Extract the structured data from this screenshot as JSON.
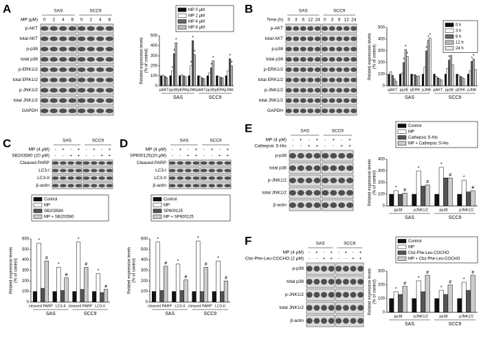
{
  "panels": [
    {
      "letter": "A",
      "cell_lines": [
        "SAS",
        "SCC9"
      ],
      "conditions": [
        {
          "label": "MP (μM)",
          "values": [
            "0",
            "2",
            "4",
            "8",
            "0",
            "2",
            "4",
            "8"
          ]
        }
      ],
      "rows": [
        "p-AKT",
        "total AKT",
        "p-p38",
        "total p38",
        "p-ERK1/2",
        "total ERK1/2",
        "p-JNK1/2",
        "total JNK1/2",
        "GAPDH"
      ]
    },
    {
      "letter": "B",
      "cell_lines": [
        "SAS",
        "SCC9"
      ],
      "conditions": [
        {
          "label": "Time (h)",
          "values": [
            "0",
            "3",
            "6",
            "12",
            "24",
            "0",
            "3",
            "6",
            "12",
            "24"
          ]
        }
      ],
      "rows": [
        "p-AKT",
        "total AKT",
        "p-p38",
        "total p38",
        "p-ERK1/2",
        "total ERK1/2",
        "p-JNK1/2",
        "total JNK1/2",
        "GAPDH"
      ]
    },
    {
      "letter": "C",
      "cell_lines": [
        "SAS",
        "SCC9"
      ],
      "conditions": [
        {
          "label": "MP (4 μM)",
          "values": [
            "-",
            "+",
            "-",
            "+",
            "-",
            "+",
            "-",
            "+"
          ]
        },
        {
          "label": "SB203580 (20 μM)",
          "values": [
            "-",
            "-",
            "+",
            "+",
            "-",
            "-",
            "+",
            "+"
          ]
        }
      ],
      "rows": [
        "Cleaved PARP",
        "LC3-I",
        "LC3-II",
        "β-actin"
      ]
    },
    {
      "letter": "D",
      "cell_lines": [
        "SAS",
        "SCC9"
      ],
      "conditions": [
        {
          "label": "MP (4 μM)",
          "values": [
            "-",
            "+",
            "-",
            "+",
            "-",
            "+",
            "-",
            "+"
          ]
        },
        {
          "label": "SP600125(20 μM)",
          "values": [
            "-",
            "-",
            "+",
            "+",
            "-",
            "-",
            "+",
            "+"
          ]
        }
      ],
      "rows": [
        "Cleaved PARP",
        "LC3-I",
        "LC3-II",
        "β-actin"
      ]
    },
    {
      "letter": "E",
      "cell_lines": [
        "SAS",
        "SCC9"
      ],
      "conditions": [
        {
          "label": "MP (4 μM)",
          "values": [
            "-",
            "+",
            "-",
            "+",
            "-",
            "+",
            "-",
            "+"
          ]
        },
        {
          "label": "Cathepsic S-His",
          "values": [
            "-",
            "-",
            "+",
            "+",
            "-",
            "-",
            "+",
            "+"
          ]
        }
      ],
      "rows": [
        "p-p38",
        "total p38",
        "p-JNK1/2",
        "total JNK1/2",
        "β-actin"
      ]
    },
    {
      "letter": "F",
      "cell_lines": [
        "SAS",
        "SCC9"
      ],
      "conditions": [
        {
          "label": "MP (4 μM)",
          "values": [
            "-",
            "+",
            "-",
            "+",
            "-",
            "+",
            "-",
            "+"
          ]
        },
        {
          "label": "Cbz-Phe-Leu-COCHO (2 μM)",
          "values": [
            "-",
            "-",
            "+",
            "+",
            "-",
            "-",
            "+",
            "+"
          ]
        }
      ],
      "rows": [
        "p-p38",
        "total p38",
        "p-JNK1/2",
        "total JNK1/2",
        "β-actin"
      ]
    }
  ],
  "chart_data": [
    {
      "type": "bar",
      "y_label": [
        "Related expression levels",
        "(% of control)"
      ],
      "categories": [
        "pAKT",
        "pp38",
        "pERK",
        "pJNK",
        "pAKT",
        "pp38",
        "pERK",
        "pJNK"
      ],
      "groups": [
        "SAS",
        "SCC9"
      ],
      "ylim": [
        0,
        500
      ],
      "yticks": [
        0,
        100,
        200,
        300,
        400,
        500
      ],
      "series": [
        {
          "name": "MP 0 μM",
          "color": "#111111",
          "values": [
            100,
            100,
            100,
            100,
            100,
            100,
            100,
            100
          ]
        },
        {
          "name": "MP 2 μM",
          "color": "#ffffff",
          "values": [
            105,
            150,
            110,
            200,
            90,
            130,
            90,
            150
          ],
          "significance": [
            null,
            "*",
            null,
            "*",
            null,
            null,
            null,
            null
          ]
        },
        {
          "name": "MP 4 μM",
          "color": "#666666",
          "values": [
            95,
            320,
            100,
            450,
            80,
            180,
            85,
            270
          ],
          "significance": [
            null,
            "*",
            null,
            "*",
            null,
            "*",
            null,
            "*"
          ]
        },
        {
          "name": "MP 8 μM",
          "color": "#bbbbbb",
          "values": [
            80,
            430,
            90,
            310,
            70,
            250,
            80,
            200
          ],
          "significance": [
            null,
            "*",
            null,
            "*",
            null,
            "*",
            null,
            "*"
          ]
        }
      ]
    },
    {
      "type": "bar",
      "y_label": [
        "Related expression levels",
        "(% of control)"
      ],
      "categories": [
        "pAKT",
        "pp38",
        "pERK",
        "pJNK",
        "pAKT",
        "pp38",
        "pERK",
        "pJNK"
      ],
      "groups": [
        "SAS",
        "SCC9"
      ],
      "ylim": [
        0,
        500
      ],
      "yticks": [
        0,
        100,
        200,
        300,
        400,
        500
      ],
      "series": [
        {
          "name": "0 h",
          "color": "#111111",
          "values": [
            100,
            100,
            100,
            100,
            100,
            100,
            100,
            100
          ]
        },
        {
          "name": "3 h",
          "color": "#ffffff",
          "values": [
            120,
            110,
            90,
            160,
            80,
            150,
            90,
            130
          ]
        },
        {
          "name": "6 h",
          "color": "#666666",
          "values": [
            90,
            200,
            95,
            300,
            70,
            220,
            80,
            210
          ],
          "significance": [
            null,
            "*",
            null,
            "*",
            null,
            "*",
            null,
            "*"
          ]
        },
        {
          "name": "12 h",
          "color": "#bbbbbb",
          "values": [
            60,
            310,
            80,
            390,
            60,
            260,
            70,
            230
          ],
          "significance": [
            null,
            "*",
            null,
            "*",
            null,
            "*",
            null,
            "*"
          ]
        },
        {
          "name": "24 h",
          "color": "#e6e6e6",
          "values": [
            40,
            250,
            85,
            410,
            50,
            180,
            60,
            140
          ],
          "significance": [
            null,
            "*",
            null,
            "*",
            null,
            null,
            null,
            null
          ]
        }
      ]
    },
    {
      "type": "bar",
      "y_label": [
        "Related expression levels",
        "(% of control)"
      ],
      "categories": [
        "cleaved PARP",
        "LC3-II",
        "cleaved PARP",
        "LC3-II"
      ],
      "groups": [
        "SAS",
        "SCC9"
      ],
      "ylim": [
        0,
        600
      ],
      "yticks": [
        0,
        100,
        200,
        300,
        400,
        500,
        600
      ],
      "series": [
        {
          "name": "Control",
          "color": "#111111",
          "values": [
            100,
            100,
            100,
            100
          ]
        },
        {
          "name": "MP",
          "color": "#ffffff",
          "values": [
            560,
            330,
            570,
            270
          ],
          "significance": [
            "*",
            "*",
            "*",
            "*"
          ]
        },
        {
          "name": "SB203580",
          "color": "#555555",
          "values": [
            130,
            110,
            120,
            90
          ]
        },
        {
          "name": "MP + SB203580",
          "color": "#cccccc",
          "values": [
            390,
            230,
            330,
            120
          ],
          "significance": [
            "#",
            "#",
            "#",
            "#"
          ]
        }
      ]
    },
    {
      "type": "bar",
      "y_label": [
        "Related expression levels",
        "(% of control)"
      ],
      "categories": [
        "cleaved PARP",
        "LC3-II",
        "cleaved PARP",
        "LC3-II"
      ],
      "groups": [
        "SAS",
        "SCC9"
      ],
      "ylim": [
        0,
        600
      ],
      "yticks": [
        0,
        100,
        200,
        300,
        400,
        500,
        600
      ],
      "series": [
        {
          "name": "Control",
          "color": "#111111",
          "values": [
            100,
            100,
            100,
            100
          ]
        },
        {
          "name": "MP",
          "color": "#ffffff",
          "values": [
            570,
            360,
            580,
            390
          ],
          "significance": [
            "*",
            "*",
            "*",
            "*"
          ]
        },
        {
          "name": "SP600125",
          "color": "#555555",
          "values": [
            110,
            110,
            100,
            100
          ]
        },
        {
          "name": "MP + SP600125",
          "color": "#cccccc",
          "values": [
            340,
            210,
            330,
            200
          ],
          "significance": [
            "#",
            "#",
            "#",
            "#"
          ]
        }
      ]
    },
    {
      "type": "bar",
      "y_label": [
        "Related expression levels",
        "(% of control)"
      ],
      "categories": [
        "pp38",
        "pJNK1/2",
        "pp38",
        "pJNK1/2"
      ],
      "groups": [
        "SAS",
        "SCC9"
      ],
      "ylim": [
        0,
        400
      ],
      "yticks": [
        0,
        100,
        200,
        300,
        400
      ],
      "series": [
        {
          "name": "Control",
          "color": "#111111",
          "values": [
            100,
            100,
            100,
            100
          ]
        },
        {
          "name": "MP",
          "color": "#ffffff",
          "values": [
            130,
            300,
            330,
            220
          ],
          "significance": [
            "*",
            "*",
            "*",
            "*"
          ]
        },
        {
          "name": "Cathepsic S-His",
          "color": "#555555",
          "values": [
            100,
            170,
            240,
            120
          ]
        },
        {
          "name": "MP + Cathepsic S-His",
          "color": "#cccccc",
          "values": [
            110,
            180,
            240,
            130
          ],
          "significance": [
            "#",
            "#",
            "#",
            "#"
          ]
        }
      ]
    },
    {
      "type": "bar",
      "y_label": [
        "Related expression levels",
        "(% of control)"
      ],
      "categories": [
        "pp38",
        "pJNK1/2",
        "pp38",
        "pJNK1/2"
      ],
      "groups": [
        "SAS",
        "SCC9"
      ],
      "ylim": [
        0,
        300
      ],
      "yticks": [
        0,
        100,
        200,
        300
      ],
      "series": [
        {
          "name": "Control",
          "color": "#111111",
          "values": [
            100,
            100,
            100,
            100
          ]
        },
        {
          "name": "MP",
          "color": "#ffffff",
          "values": [
            150,
            230,
            160,
            220
          ],
          "significance": [
            "*",
            "*",
            "*",
            "*"
          ]
        },
        {
          "name": "Cbz-Phe-Leu-COCHO",
          "color": "#555555",
          "values": [
            130,
            150,
            130,
            160
          ]
        },
        {
          "name": "MP + Cbz-Phe-Leu-COCHO",
          "color": "#cccccc",
          "values": [
            190,
            270,
            200,
            270
          ],
          "significance": [
            "#",
            "#",
            "#",
            "#"
          ]
        }
      ]
    }
  ]
}
